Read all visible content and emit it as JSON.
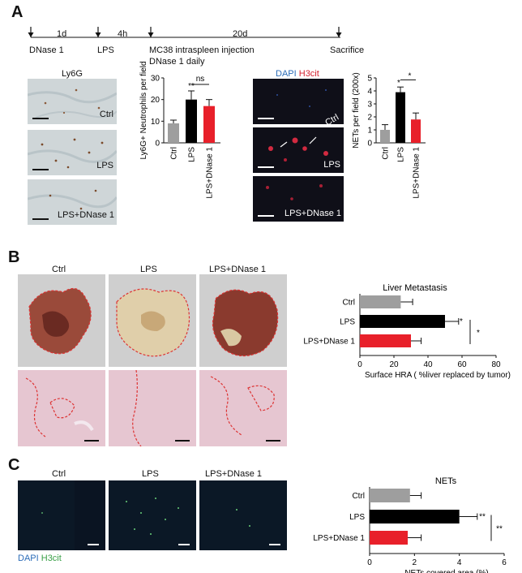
{
  "panels": {
    "a": "A",
    "b": "B",
    "c": "C"
  },
  "timeline": {
    "intervals": [
      "1d",
      "4h",
      "20d"
    ],
    "events": [
      "DNase 1",
      "LPS",
      "MC38 intraspleen injection",
      "Sacrifice"
    ],
    "events_sub": "DNase 1 daily"
  },
  "ihc": {
    "title": "Ly6G",
    "labels": [
      "Ctrl",
      "LPS",
      "LPS+DNase 1"
    ]
  },
  "fluo_a": {
    "title_dapi": "DAPI",
    "title_h3cit": "H3cit",
    "labels": [
      "Ctrl",
      "LPS",
      "LPS+DNase 1"
    ]
  },
  "photos_b": {
    "labels": [
      "Ctrl",
      "LPS",
      "LPS+DNase 1"
    ]
  },
  "fluo_c": {
    "labels": [
      "Ctrl",
      "LPS",
      "LPS+DNase 1"
    ],
    "legend_dapi": "DAPI",
    "legend_h3cit": "H3cit"
  },
  "colors": {
    "ctrl": "#9e9e9e",
    "lps": "#000000",
    "dnase": "#e8202a"
  },
  "chart_data": [
    {
      "type": "bar",
      "ylabel": "Ly6G+ Neutrophils per field",
      "categories": [
        "Ctrl",
        "LPS",
        "LPS+DNase 1"
      ],
      "values": [
        9,
        20,
        17
      ],
      "errors": [
        1.5,
        4,
        3
      ],
      "ylim": [
        0,
        30
      ],
      "yticks": [
        "0",
        "10",
        "20",
        "30"
      ],
      "annotations": [
        "**",
        "ns"
      ]
    },
    {
      "type": "bar",
      "ylabel": "NETs per field (200x)",
      "categories": [
        "Ctrl",
        "LPS",
        "LPS+DNase 1"
      ],
      "values": [
        1,
        3.9,
        1.8
      ],
      "errors": [
        0.4,
        0.4,
        0.5
      ],
      "ylim": [
        0,
        5
      ],
      "yticks": [
        "0",
        "1",
        "2",
        "3",
        "4",
        "5"
      ],
      "annotations": [
        "*",
        "*"
      ]
    },
    {
      "type": "bar",
      "orientation": "horizontal",
      "title": "Liver Metastasis",
      "xlabel": "Surface HRA ( %liver replaced by tumor)",
      "categories": [
        "Ctrl",
        "LPS",
        "LPS+DNase 1"
      ],
      "values": [
        24,
        50,
        30
      ],
      "errors": [
        7,
        8,
        6
      ],
      "xlim": [
        0,
        80
      ],
      "xticks": [
        "0",
        "20",
        "40",
        "60",
        "80"
      ],
      "annotations": [
        "*",
        "*"
      ]
    },
    {
      "type": "bar",
      "orientation": "horizontal",
      "title": "NETs",
      "xlabel": "NETs covered area (%)",
      "categories": [
        "Ctrl",
        "LPS",
        "LPS+DNase 1"
      ],
      "values": [
        1.8,
        4.0,
        1.7
      ],
      "errors": [
        0.5,
        0.8,
        0.6
      ],
      "xlim": [
        0,
        6
      ],
      "xticks": [
        "0",
        "2",
        "4",
        "6"
      ],
      "annotations": [
        "**",
        "**"
      ]
    }
  ]
}
